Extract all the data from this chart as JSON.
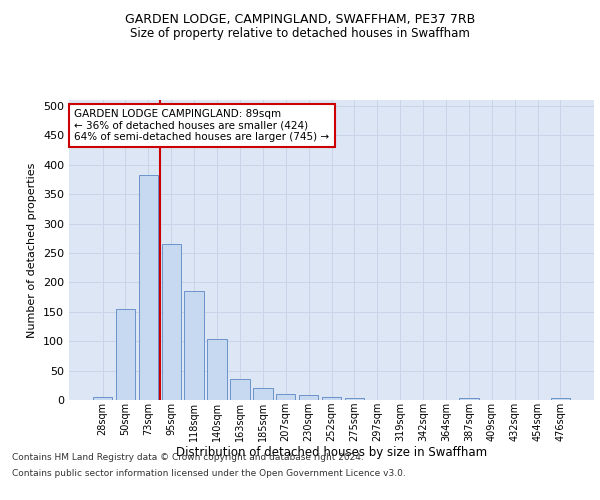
{
  "title1": "GARDEN LODGE, CAMPINGLAND, SWAFFHAM, PE37 7RB",
  "title2": "Size of property relative to detached houses in Swaffham",
  "xlabel": "Distribution of detached houses by size in Swaffham",
  "ylabel": "Number of detached properties",
  "categories": [
    "28sqm",
    "50sqm",
    "73sqm",
    "95sqm",
    "118sqm",
    "140sqm",
    "163sqm",
    "185sqm",
    "207sqm",
    "230sqm",
    "252sqm",
    "275sqm",
    "297sqm",
    "319sqm",
    "342sqm",
    "364sqm",
    "387sqm",
    "409sqm",
    "432sqm",
    "454sqm",
    "476sqm"
  ],
  "values": [
    5,
    155,
    383,
    265,
    185,
    103,
    35,
    20,
    10,
    8,
    5,
    4,
    0,
    0,
    0,
    0,
    3,
    0,
    0,
    0,
    3
  ],
  "bar_color": "#c6d9f0",
  "bar_edge_color": "#5a87c5",
  "vline_x_index": 3,
  "vline_color": "#cc0000",
  "annotation_text": "GARDEN LODGE CAMPINGLAND: 89sqm\n← 36% of detached houses are smaller (424)\n64% of semi-detached houses are larger (745) →",
  "annotation_box_color": "#ffffff",
  "annotation_box_edge": "#cc0000",
  "ylim": [
    0,
    510
  ],
  "yticks": [
    0,
    50,
    100,
    150,
    200,
    250,
    300,
    350,
    400,
    450,
    500
  ],
  "grid_color": "#c8d4e8",
  "background_color": "#dce6f5",
  "footer1": "Contains HM Land Registry data © Crown copyright and database right 2024.",
  "footer2": "Contains public sector information licensed under the Open Government Licence v3.0."
}
